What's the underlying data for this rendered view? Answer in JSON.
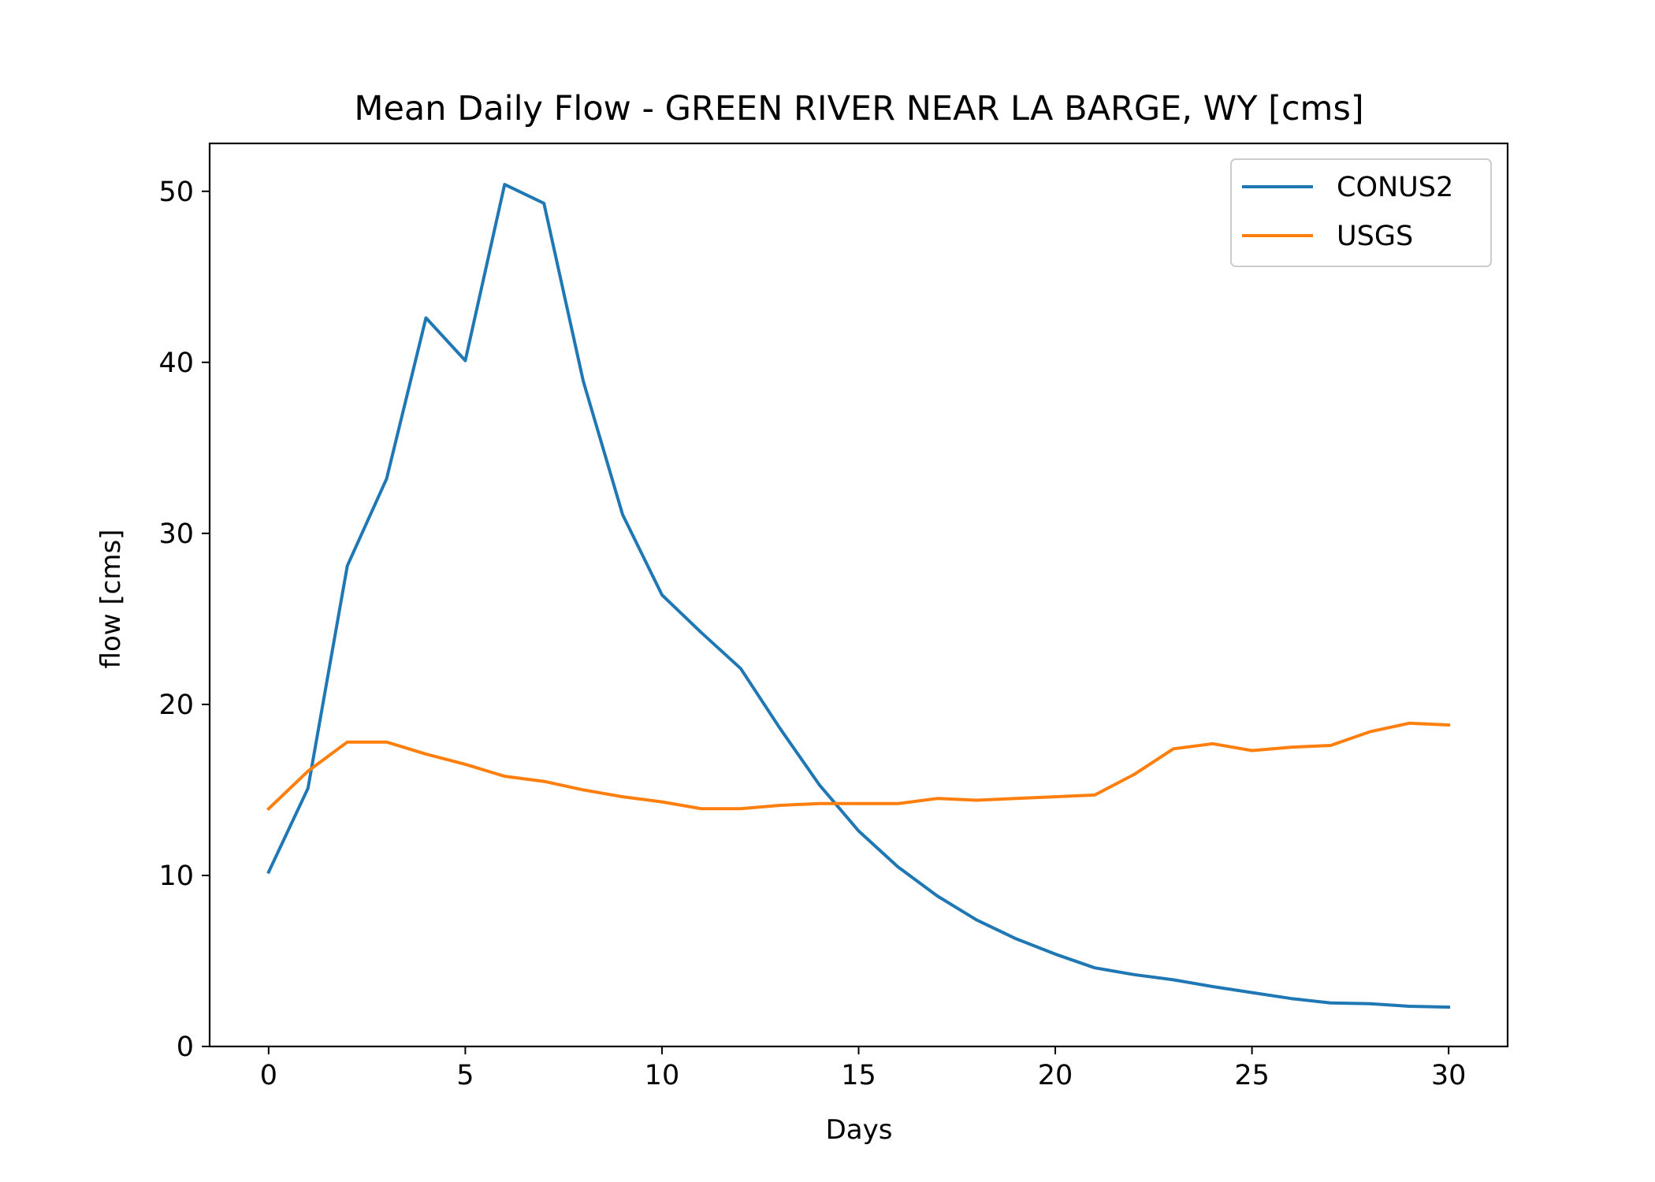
{
  "chart_data": {
    "type": "line",
    "title": "Mean Daily Flow - GREEN RIVER NEAR LA BARGE, WY [cms]",
    "xlabel": "Days",
    "ylabel": "flow [cms]",
    "xlim": [
      -1.5,
      31.5
    ],
    "ylim": [
      0,
      52.8
    ],
    "xticks": [
      0,
      5,
      10,
      15,
      20,
      25,
      30
    ],
    "yticks": [
      0,
      10,
      20,
      30,
      40,
      50
    ],
    "grid": false,
    "legend_position": "top-right",
    "x": [
      0,
      1,
      2,
      3,
      4,
      5,
      6,
      7,
      8,
      9,
      10,
      11,
      12,
      13,
      14,
      15,
      16,
      17,
      18,
      19,
      20,
      21,
      22,
      23,
      24,
      25,
      26,
      27,
      28,
      29,
      30
    ],
    "series": [
      {
        "name": "CONUS2",
        "color": "#1f77b4",
        "values": [
          10.2,
          15.1,
          28.1,
          33.2,
          42.6,
          40.1,
          50.4,
          49.3,
          38.9,
          31.1,
          26.4,
          24.2,
          22.1,
          18.6,
          15.3,
          12.6,
          10.5,
          8.8,
          7.4,
          6.3,
          5.4,
          4.6,
          4.2,
          3.9,
          3.5,
          3.15,
          2.8,
          2.55,
          2.5,
          2.35,
          2.3
        ]
      },
      {
        "name": "USGS",
        "color": "#ff7f0e",
        "values": [
          13.9,
          16.1,
          17.8,
          17.8,
          17.1,
          16.5,
          15.8,
          15.5,
          15.0,
          14.6,
          14.3,
          13.9,
          13.9,
          14.1,
          14.2,
          14.2,
          14.2,
          14.5,
          14.4,
          14.5,
          14.6,
          14.7,
          15.9,
          17.4,
          17.7,
          17.3,
          17.5,
          17.6,
          18.4,
          18.9,
          18.8
        ]
      }
    ]
  }
}
